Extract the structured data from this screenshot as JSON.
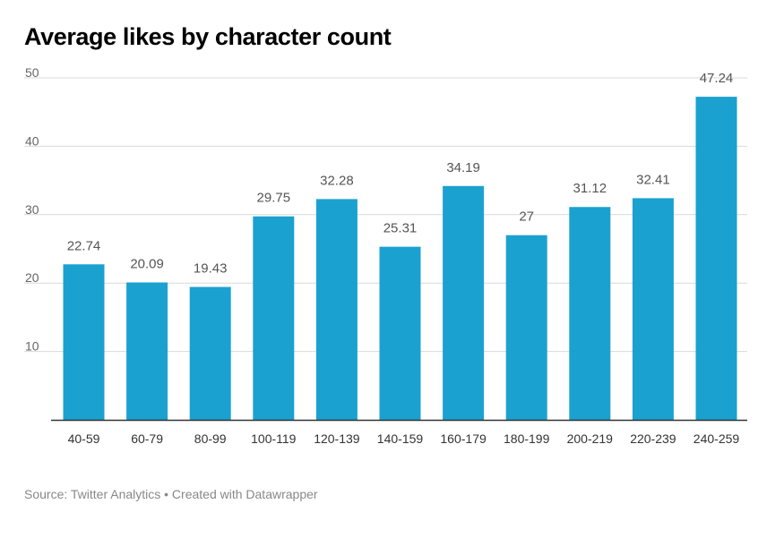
{
  "chart_data": {
    "type": "bar",
    "title": "Average likes by character count",
    "xlabel": "",
    "ylabel": "",
    "categories": [
      "40-59",
      "60-79",
      "80-99",
      "100-119",
      "120-139",
      "140-159",
      "160-179",
      "180-199",
      "200-219",
      "220-239",
      "240-259"
    ],
    "values": [
      22.74,
      20.09,
      19.43,
      29.75,
      32.28,
      25.31,
      34.19,
      27,
      31.12,
      32.41,
      47.24
    ],
    "data_labels": [
      "22.74",
      "20.09",
      "19.43",
      "29.75",
      "32.28",
      "25.31",
      "34.19",
      "27",
      "31.12",
      "32.41",
      "47.24"
    ],
    "ylim": [
      0,
      50
    ],
    "yticks": [
      10,
      20,
      30,
      40,
      50
    ],
    "grid": true,
    "legend": "none",
    "bar_color": "#1ba1cf",
    "grid_color": "#d9d9d9",
    "axis_color": "#333333"
  },
  "footer": {
    "source": "Source: Twitter Analytics • Created with Datawrapper"
  }
}
